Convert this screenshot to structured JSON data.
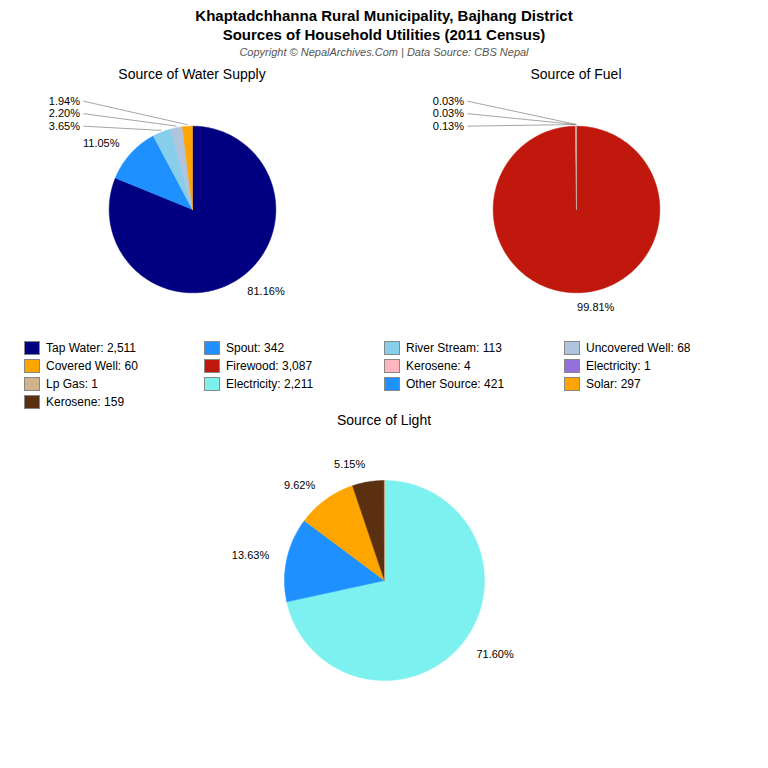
{
  "title": "Khaptadchhanna Rural Municipality, Bajhang District",
  "subtitle": "Sources of Household Utilities (2011 Census)",
  "annotations": [
    "Copyright © NepalArchives.Com | Data Source: CBS Nepal"
  ],
  "chart_data": [
    {
      "type": "pie",
      "title": "Source of Water Supply",
      "categories": [
        "Tap Water: 2,511",
        "Spout: 342",
        "River Stream: 113",
        "Uncovered Well: 68",
        "Covered Well: 60"
      ],
      "values": [
        81.16,
        11.05,
        3.65,
        2.2,
        1.94
      ],
      "value_labels": [
        "81.16%",
        "11.05%",
        "3.65%",
        "2.20%",
        "1.94%"
      ],
      "colors": [
        "#000080",
        "#1e90ff",
        "#87ceeb",
        "#b0c4de",
        "#ffa500"
      ],
      "data_labels": true,
      "legend": "bottom"
    },
    {
      "type": "pie",
      "title": "Source of Fuel",
      "categories": [
        "Firewood: 3,087",
        "Kerosene: 4",
        "Electricity: 1",
        "Lp Gas: 1"
      ],
      "values": [
        99.81,
        0.13,
        0.03,
        0.03
      ],
      "value_labels": [
        "99.81%",
        "0.13%",
        "0.03%",
        "0.03%"
      ],
      "colors": [
        "#c0180c",
        "#ffb6c1",
        "#9370db",
        "#d2b48c"
      ],
      "data_labels": true,
      "legend": "bottom"
    },
    {
      "type": "pie",
      "title": "Source of Light",
      "categories": [
        "Electricity: 2,211",
        "Other Source: 421",
        "Solar: 297",
        "Kerosene: 159",
        null
      ],
      "values": [
        71.6,
        13.63,
        9.62,
        5.15,
        0.03
      ],
      "value_labels": [
        "71.60%",
        "13.63%",
        "9.62%",
        "5.15%",
        null
      ],
      "colors": [
        "#7df0f0",
        "#1e90ff",
        "#ffa500",
        "#5a3010",
        "#d2b48c"
      ],
      "data_labels": true,
      "legend": "top"
    }
  ]
}
